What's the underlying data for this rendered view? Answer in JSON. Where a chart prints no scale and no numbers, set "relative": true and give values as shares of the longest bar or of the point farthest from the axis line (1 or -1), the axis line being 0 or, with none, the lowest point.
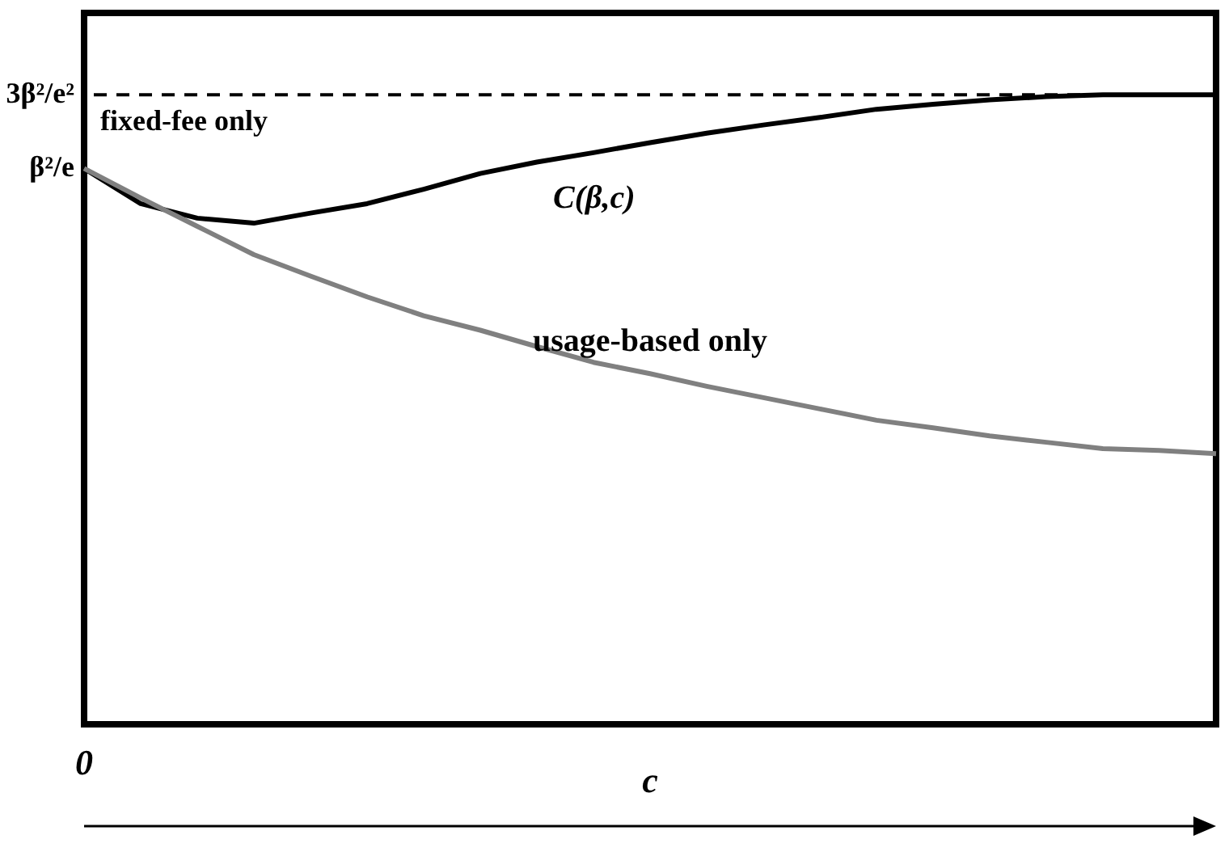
{
  "chart_data": {
    "type": "line",
    "relative": true,
    "xlabel": "c",
    "categories": [
      null,
      null,
      null,
      null,
      null,
      null,
      null,
      null,
      null,
      null,
      null,
      null,
      null,
      null,
      null,
      null,
      null,
      null,
      null,
      null,
      null
    ],
    "series": [
      {
        "name": "C(β,c)",
        "color": "#000000",
        "values": [
          0.883,
          0.827,
          0.804,
          0.796,
          0.812,
          0.827,
          0.85,
          0.875,
          0.893,
          0.908,
          0.924,
          0.939,
          0.952,
          0.964,
          0.977,
          0.985,
          0.992,
          0.997,
          1,
          1,
          1
        ]
      },
      {
        "name": "usage-based only",
        "color": "#808080",
        "values": [
          0.883,
          0.836,
          0.791,
          0.746,
          0.712,
          0.679,
          0.649,
          0.626,
          0.6,
          0.575,
          0.557,
          0.537,
          0.519,
          0.501,
          0.483,
          0.471,
          0.458,
          0.448,
          0.438,
          0.435,
          0.43
        ]
      }
    ],
    "ref_lines": [
      {
        "axis": "y",
        "value": 1,
        "label": "fixed-fee only",
        "color": "#000000",
        "line_style": "dashed"
      }
    ],
    "annotations": [
      "3β²/e²",
      "β²/e",
      "0"
    ],
    "line_style": "solid",
    "marker": "none"
  }
}
